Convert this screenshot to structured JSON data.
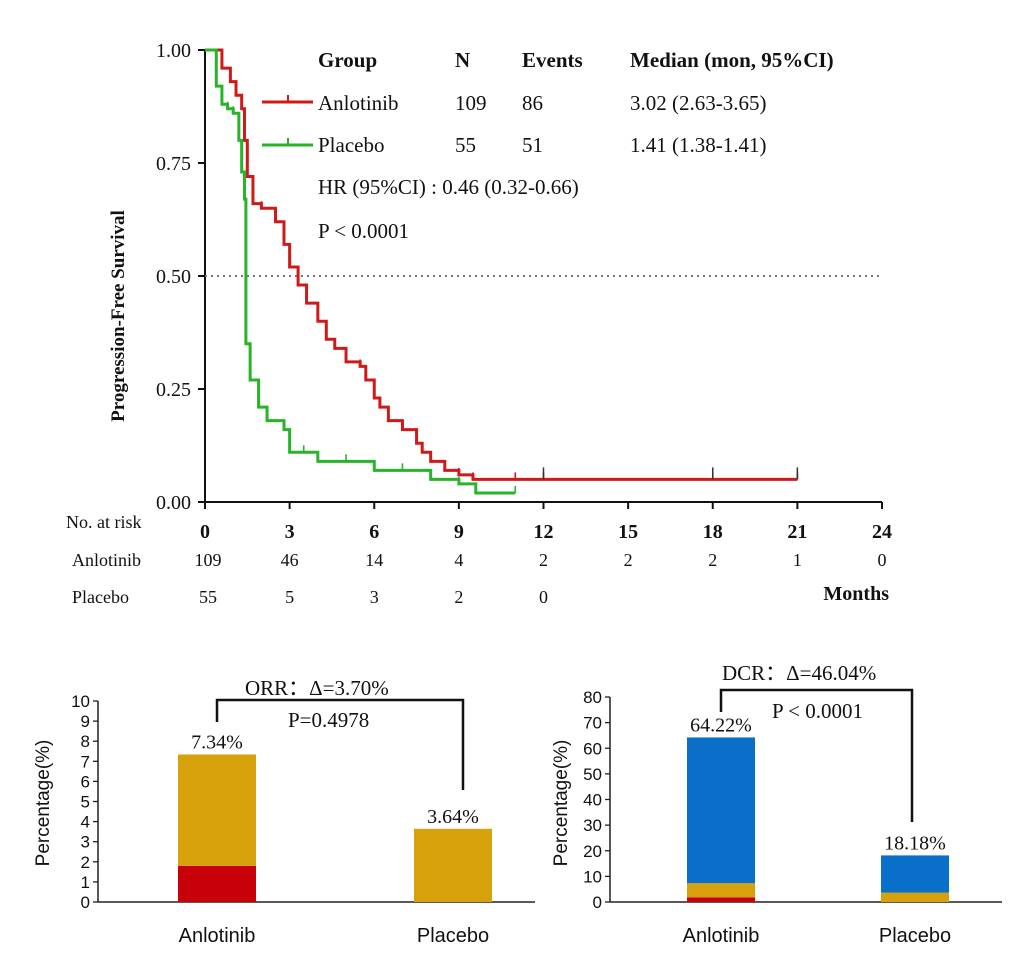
{
  "chart_data": [
    {
      "type": "line",
      "subtype": "kaplan-meier",
      "title": "",
      "xlabel": "Months",
      "ylabel": "Progression-Free Survival",
      "xlim": [
        0,
        24
      ],
      "ylim": [
        0,
        1
      ],
      "x_ticks": [
        "0",
        "3",
        "6",
        "9",
        "12",
        "15",
        "18",
        "21",
        "24"
      ],
      "y_ticks": [
        "0.00",
        "0.25",
        "0.50",
        "0.75",
        "1.00"
      ],
      "reference_line": 0.5,
      "legend_header": {
        "group": "Group",
        "n": "N",
        "events": "Events",
        "median": "Median (mon, 95%CI)"
      },
      "hr_text": "HR (95%CI) : 0.46 (0.32-0.66)",
      "p_text": "P < 0.0001",
      "series": [
        {
          "name": "Anlotinib",
          "n": "109",
          "events": "86",
          "median": "3.02 (2.63-3.65)",
          "color": "#d01a1a",
          "x": [
            0,
            0.6,
            0.9,
            1.1,
            1.3,
            1.4,
            1.5,
            1.7,
            2.0,
            2.5,
            2.8,
            3.0,
            3.3,
            3.6,
            4.0,
            4.3,
            4.6,
            5.0,
            5.5,
            5.7,
            6.0,
            6.2,
            6.5,
            7.0,
            7.5,
            7.7,
            8.0,
            8.5,
            9.0,
            9.5,
            11.0,
            12.0,
            18.0,
            21.0
          ],
          "y": [
            1.0,
            0.96,
            0.93,
            0.9,
            0.87,
            0.8,
            0.72,
            0.66,
            0.65,
            0.62,
            0.57,
            0.52,
            0.48,
            0.44,
            0.4,
            0.36,
            0.34,
            0.31,
            0.3,
            0.27,
            0.23,
            0.21,
            0.18,
            0.16,
            0.13,
            0.11,
            0.09,
            0.07,
            0.06,
            0.05,
            0.05,
            0.05,
            0.05,
            0.05
          ]
        },
        {
          "name": "Placebo",
          "n": "55",
          "events": "51",
          "median": "1.41 (1.38-1.41)",
          "color": "#28b428",
          "x": [
            0,
            0.4,
            0.6,
            0.8,
            1.0,
            1.2,
            1.3,
            1.4,
            1.45,
            1.6,
            1.9,
            2.2,
            2.8,
            3.0,
            3.5,
            4.0,
            5.0,
            6.0,
            7.0,
            8.0,
            9.0,
            9.6,
            11.0
          ],
          "y": [
            1.0,
            0.92,
            0.88,
            0.87,
            0.86,
            0.8,
            0.73,
            0.67,
            0.35,
            0.27,
            0.21,
            0.18,
            0.16,
            0.11,
            0.11,
            0.09,
            0.09,
            0.07,
            0.07,
            0.05,
            0.04,
            0.02,
            0.02
          ]
        }
      ],
      "risk_table": {
        "title": "No. at risk",
        "rows": [
          {
            "name": "Anlotinib",
            "values": [
              "109",
              "46",
              "14",
              "4",
              "2",
              "2",
              "2",
              "1",
              "0"
            ]
          },
          {
            "name": "Placebo",
            "values": [
              "55",
              "5",
              "3",
              "2",
              "0"
            ]
          }
        ]
      }
    },
    {
      "type": "bar",
      "stacked": true,
      "title": "",
      "xlabel": "",
      "ylabel": "Percentage(%)",
      "ylim": [
        0,
        10
      ],
      "y_ticks": [
        "0",
        "1",
        "2",
        "3",
        "4",
        "5",
        "6",
        "7",
        "8",
        "9",
        "10"
      ],
      "categories": [
        "Anlotinib",
        "Placebo"
      ],
      "series": [
        {
          "name": "segment-1",
          "color": "#c8000a",
          "values": [
            1.8,
            0
          ]
        },
        {
          "name": "segment-2",
          "color": "#d6a10a",
          "values": [
            5.54,
            3.64
          ]
        }
      ],
      "data_labels": [
        "7.34%",
        "3.64%"
      ],
      "bracket_label": "ORR：Δ=3.70%",
      "p_text": "P=0.4978"
    },
    {
      "type": "bar",
      "stacked": true,
      "title": "",
      "xlabel": "",
      "ylabel": "Percentage(%)",
      "ylim": [
        0,
        80
      ],
      "y_ticks": [
        "0",
        "10",
        "20",
        "30",
        "40",
        "50",
        "60",
        "70",
        "80"
      ],
      "categories": [
        "Anlotinib",
        "Placebo"
      ],
      "series": [
        {
          "name": "segment-1",
          "color": "#c8000a",
          "values": [
            1.83,
            0
          ]
        },
        {
          "name": "segment-2",
          "color": "#d6a10a",
          "values": [
            5.51,
            3.64
          ]
        },
        {
          "name": "segment-3",
          "color": "#0a6fc8",
          "values": [
            56.88,
            14.54
          ]
        }
      ],
      "data_labels": [
        "64.22%",
        "18.18%"
      ],
      "bracket_label": "DCR：Δ=46.04%",
      "p_text": "P < 0.0001"
    }
  ]
}
